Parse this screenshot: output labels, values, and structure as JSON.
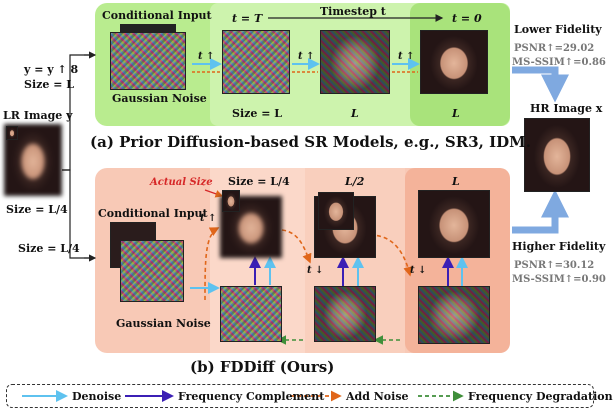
{
  "top": {
    "conditional_input": "Conditional Input",
    "gaussian_noise": "Gaussian Noise",
    "t_eq_T": "t = T",
    "timestep": "Timestep t",
    "t_eq_0": "t = 0",
    "arrow_t": "t ↑",
    "size_L": "Size = L",
    "L": "L",
    "L_last": "L",
    "caption": "(a) Prior Diffusion-based SR Models, e.g., SR3, IDM."
  },
  "left": {
    "formula": "y = y ↑ 8",
    "size_L": "Size = L",
    "lr_image": "LR Image y",
    "size_L4": "Size = L/4",
    "size_L4_lower": "Size = L/4"
  },
  "fidelity": {
    "lower": "Lower Fidelity",
    "lower_psnr": "PSNR↑=29.02",
    "lower_ssim": "MS-SSIM↑=0.86",
    "hr_image": "HR Image x",
    "higher": "Higher Fidelity",
    "higher_psnr": "PSNR↑=30.12",
    "higher_ssim": "MS-SSIM↑=0.90"
  },
  "bottom": {
    "actual_size": "Actual Size",
    "size_L4": "Size = L/4",
    "L2": "L/2",
    "L": "L",
    "conditional_input": "Conditional Input",
    "gaussian_noise": "Gaussian Noise",
    "t_down": "t ↓",
    "t_arrow": "t ↑",
    "caption": "(b) FDDiff  (Ours)"
  },
  "legend": {
    "denoise": "Denoise",
    "frequency_complement": "Frequency Complement",
    "add_noise": "Add Noise",
    "frequency_degradation": "Frequency Degradation"
  },
  "colors": {
    "green_panel": "#b9ec8f",
    "green_light": "#dff7c9",
    "salmon_panel": "#f8c9b6",
    "salmon_light": "#fde6dc",
    "denoise_arrow": "#5ec2ef",
    "complement_arrow": "#3b1fb5",
    "add_noise_arrow": "#e0661a",
    "degradation_arrow": "#3f8f3a",
    "fidelity_arrow": "#7fa9e0",
    "actual_size_text": "#d62828"
  }
}
